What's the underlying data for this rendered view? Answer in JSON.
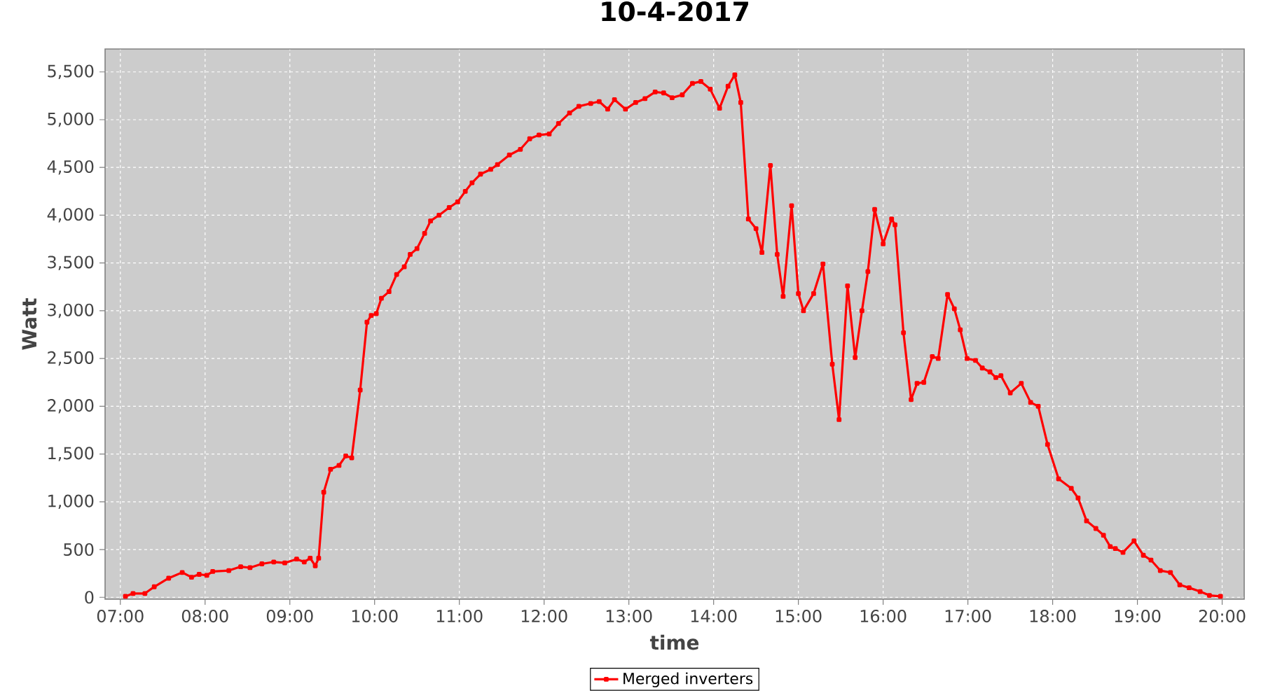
{
  "chart_data": {
    "type": "line",
    "title": "10-4-2017",
    "xlabel": "time",
    "ylabel": "Watt",
    "x": [
      7.06,
      7.15,
      7.29,
      7.4,
      7.57,
      7.73,
      7.84,
      7.93,
      8.02,
      8.09,
      8.28,
      8.42,
      8.53,
      8.67,
      8.81,
      8.94,
      9.08,
      9.17,
      9.24,
      9.3,
      9.34,
      9.4,
      9.48,
      9.58,
      9.66,
      9.73,
      9.83,
      9.91,
      9.96,
      10.02,
      10.08,
      10.17,
      10.26,
      10.35,
      10.42,
      10.5,
      10.59,
      10.66,
      10.76,
      10.88,
      10.98,
      11.07,
      11.15,
      11.25,
      11.37,
      11.45,
      11.59,
      11.72,
      11.83,
      11.94,
      12.06,
      12.17,
      12.3,
      12.41,
      12.55,
      12.65,
      12.75,
      12.83,
      12.96,
      13.08,
      13.19,
      13.31,
      13.41,
      13.51,
      13.63,
      13.75,
      13.85,
      13.96,
      14.07,
      14.17,
      14.25,
      14.32,
      14.41,
      14.5,
      14.57,
      14.67,
      14.75,
      14.82,
      14.92,
      15.0,
      15.06,
      15.18,
      15.29,
      15.4,
      15.48,
      15.58,
      15.67,
      15.75,
      15.82,
      15.9,
      16.0,
      16.1,
      16.14,
      16.24,
      16.33,
      16.4,
      16.48,
      16.58,
      16.65,
      16.76,
      16.84,
      16.91,
      16.99,
      17.09,
      17.17,
      17.26,
      17.33,
      17.39,
      17.5,
      17.63,
      17.74,
      17.83,
      17.94,
      18.07,
      18.22,
      18.3,
      18.4,
      18.51,
      18.6,
      18.68,
      18.74,
      18.83,
      18.96,
      19.07,
      19.16,
      19.27,
      19.39,
      19.5,
      19.61,
      19.74,
      19.85,
      19.98
    ],
    "series": [
      {
        "name": "Merged inverters",
        "color": "#ff0000",
        "values": [
          10,
          40,
          40,
          110,
          200,
          260,
          210,
          240,
          230,
          270,
          280,
          320,
          310,
          350,
          370,
          360,
          400,
          370,
          410,
          330,
          410,
          1100,
          1340,
          1380,
          1480,
          1460,
          2170,
          2880,
          2950,
          2970,
          3130,
          3200,
          3380,
          3460,
          3590,
          3650,
          3810,
          3940,
          4000,
          4080,
          4140,
          4250,
          4340,
          4430,
          4480,
          4530,
          4630,
          4690,
          4800,
          4840,
          4850,
          4960,
          5070,
          5140,
          5170,
          5190,
          5110,
          5210,
          5110,
          5180,
          5220,
          5290,
          5280,
          5230,
          5260,
          5380,
          5400,
          5320,
          5120,
          5350,
          5470,
          5180,
          3960,
          3860,
          3610,
          4520,
          3590,
          3150,
          4100,
          3180,
          3000,
          3180,
          3490,
          2440,
          1860,
          3260,
          2510,
          3000,
          3410,
          4060,
          3700,
          3960,
          3900,
          2770,
          2070,
          2240,
          2250,
          2520,
          2500,
          3170,
          3020,
          2800,
          2500,
          2480,
          2400,
          2360,
          2300,
          2320,
          2140,
          2240,
          2040,
          2000,
          1600,
          1240,
          1140,
          1040,
          800,
          720,
          650,
          530,
          510,
          470,
          590,
          440,
          390,
          280,
          260,
          130,
          100,
          60,
          20,
          10
        ]
      }
    ],
    "xlim": [
      6.82,
      20.26
    ],
    "ylim": [
      -20,
      5740
    ],
    "xticks": [
      {
        "value": 7,
        "label": "07:00"
      },
      {
        "value": 8,
        "label": "08:00"
      },
      {
        "value": 9,
        "label": "09:00"
      },
      {
        "value": 10,
        "label": "10:00"
      },
      {
        "value": 11,
        "label": "11:00"
      },
      {
        "value": 12,
        "label": "12:00"
      },
      {
        "value": 13,
        "label": "13:00"
      },
      {
        "value": 14,
        "label": "14:00"
      },
      {
        "value": 15,
        "label": "15:00"
      },
      {
        "value": 16,
        "label": "16:00"
      },
      {
        "value": 17,
        "label": "17:00"
      },
      {
        "value": 18,
        "label": "18:00"
      },
      {
        "value": 19,
        "label": "19:00"
      },
      {
        "value": 20,
        "label": "20:00"
      }
    ],
    "yticks": [
      0,
      500,
      {
        "value": 1000,
        "label": "1,000"
      },
      {
        "value": 1500,
        "label": "1,500"
      },
      {
        "value": 2000,
        "label": "2,000"
      },
      {
        "value": 2500,
        "label": "2,500"
      },
      {
        "value": 3000,
        "label": "3,000"
      },
      {
        "value": 3500,
        "label": "3,500"
      },
      {
        "value": 4000,
        "label": "4,000"
      },
      {
        "value": 4500,
        "label": "4,500"
      },
      {
        "value": 5000,
        "label": "5,000"
      },
      {
        "value": 5500,
        "label": "5,500"
      }
    ],
    "grid": true,
    "legend": "bottom",
    "marker": "square",
    "line_style": "solid"
  }
}
